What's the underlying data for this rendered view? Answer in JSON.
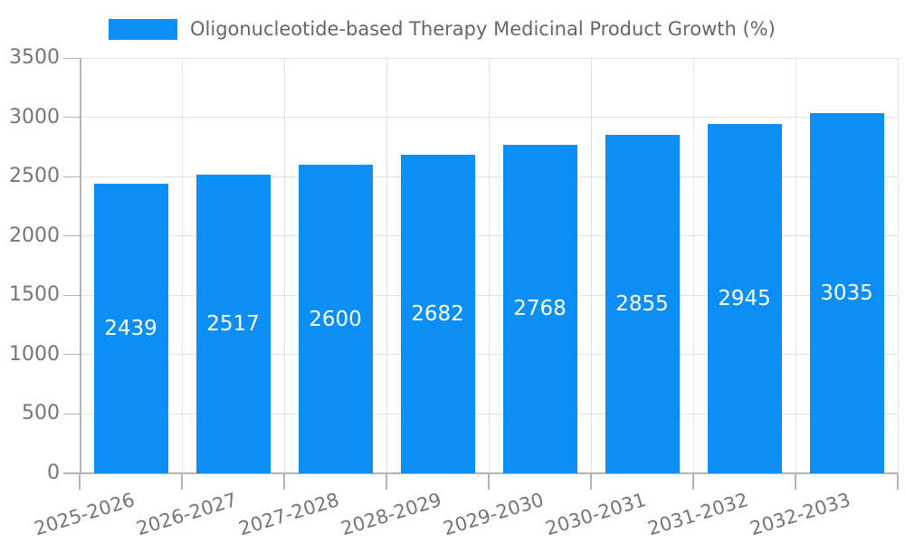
{
  "chart_data": {
    "type": "bar",
    "title": "",
    "legend": {
      "label": "Oligonucleotide-based Therapy Medicinal Product Growth (%)",
      "position": "top"
    },
    "categories": [
      "2025-2026",
      "2026-2027",
      "2027-2028",
      "2028-2029",
      "2029-2030",
      "2030-2031",
      "2031-2032",
      "2032-2033"
    ],
    "series": [
      {
        "name": "Oligonucleotide-based Therapy Medicinal Product Growth (%)",
        "values": [
          2439,
          2517,
          2600,
          2682,
          2768,
          2855,
          2945,
          3035
        ]
      }
    ],
    "value_labels": [
      "2439",
      "2517",
      "2600",
      "2682",
      "2768",
      "2855",
      "2945",
      "3035"
    ],
    "xlabel": "",
    "ylabel": "",
    "ylim": [
      0,
      3500
    ],
    "yticks": [
      0,
      500,
      1000,
      1500,
      2000,
      2500,
      3000,
      3500
    ],
    "grid": true,
    "value_label_position": "center",
    "colors": {
      "bar": "#0b8ef6",
      "tick_text": "#757575",
      "legend_text": "#666666",
      "grid": "#e3e3e3",
      "axis": "#b3b3b3",
      "value_label_text": "#ffffff",
      "background": "#ffffff"
    }
  }
}
